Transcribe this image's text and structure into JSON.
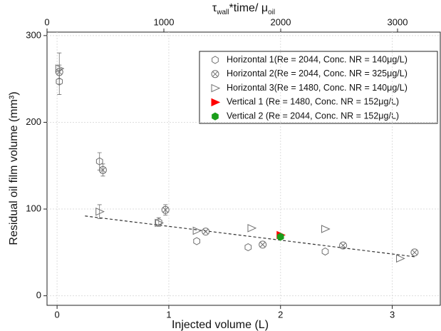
{
  "chart_data": {
    "type": "scatter",
    "xlabel": "Injected volume (L)",
    "ylabel": "Residual oil film volume (mm³)",
    "x2label": [
      "τ",
      "wall",
      "*time/ μ",
      "oil"
    ],
    "xlim": [
      -0.09,
      3.43
    ],
    "xticks": [
      0,
      1,
      2,
      3
    ],
    "x2lim": [
      0,
      3366
    ],
    "x2ticks": [
      0,
      1000,
      2000,
      3000
    ],
    "ylim": [
      -11,
      304
    ],
    "yticks": [
      0,
      100,
      200,
      300
    ],
    "grid": true,
    "series": [
      {
        "name": "Horizontal 1(Re = 2044, Conc. NR = 140μg/L)",
        "color": "#707070",
        "marker": "hexagon",
        "filled": false,
        "x": [
          0.02,
          0.38,
          0.91,
          1.25,
          1.71,
          2.4
        ],
        "values": [
          247,
          155,
          85,
          63,
          56,
          51
        ],
        "errors": [
          15,
          10,
          5,
          null,
          null,
          null
        ]
      },
      {
        "name": "Horizontal 2(Re = 2044, Conc. NR = 325μg/L)",
        "color": "#707070",
        "marker": "circle-x",
        "filled": false,
        "x": [
          0.02,
          0.41,
          0.97,
          1.33,
          1.84,
          2.56,
          3.2
        ],
        "values": [
          258,
          145,
          99,
          74,
          59,
          58,
          50
        ],
        "errors": [
          8,
          7,
          6,
          null,
          null,
          null,
          null
        ]
      },
      {
        "name": "Horizontal 3(Re = 1480, Conc. NR = 140μg/L)",
        "color": "#707070",
        "marker": "triangle-right",
        "filled": false,
        "x": [
          0.02,
          0.38,
          0.91,
          1.25,
          1.74,
          2.4,
          3.07
        ],
        "values": [
          262,
          97,
          84,
          75,
          78,
          77,
          43
        ],
        "errors": [
          18,
          8,
          null,
          null,
          null,
          null,
          null
        ]
      },
      {
        "name": "Vertical 1 (Re =  1480, Conc. NR = 152μg/L)",
        "color": "#ff0000",
        "marker": "triangle-right",
        "filled": true,
        "x": [
          2.0
        ],
        "values": [
          70
        ],
        "errors": [
          null
        ]
      },
      {
        "name": "Vertical 2 (Re =  2044, Conc. NR = 152μg/L)",
        "color": "#1a9e1a",
        "marker": "hexagon",
        "filled": true,
        "x": [
          2.0
        ],
        "values": [
          68
        ],
        "errors": [
          3
        ]
      }
    ],
    "trend_line": {
      "x": [
        0.25,
        3.2
      ],
      "values": [
        92,
        45
      ],
      "color": "#333333"
    }
  }
}
